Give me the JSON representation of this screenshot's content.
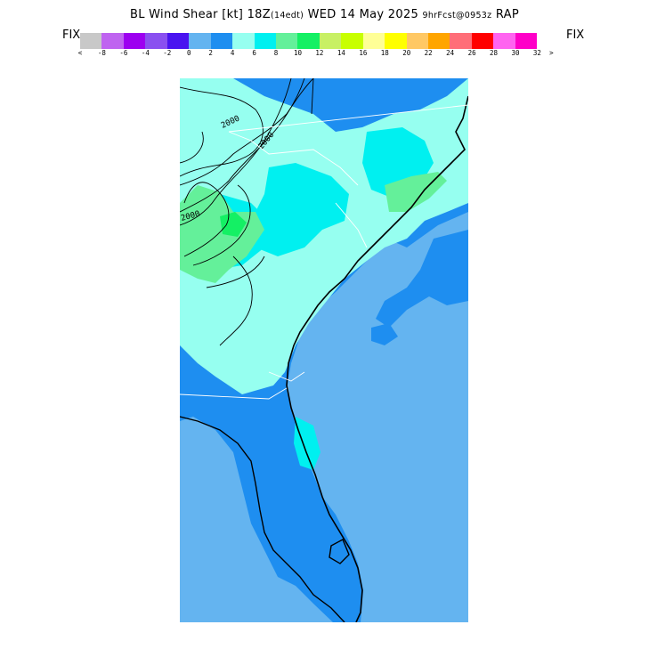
{
  "header": {
    "title_main": "BL Wind Shear [kt] 18Z",
    "title_local": "(14edt)",
    "title_date": "WED 14 May 2025",
    "title_forecast": "9hrFcst@0953z",
    "title_model": "RAP"
  },
  "colorbar": {
    "left_label": "FIX",
    "right_label": "FIX",
    "colors": [
      "#c8c8c8",
      "#bf64f0",
      "#9d00f0",
      "#8a50f0",
      "#4a14f0",
      "#64b4f0",
      "#1e8ef0",
      "#96fff0",
      "#00f0f0",
      "#64f09a",
      "#14f064",
      "#c8f064",
      "#c8ff00",
      "#ffff96",
      "#ffff00",
      "#ffc864",
      "#ffa500",
      "#ff6e78",
      "#ff0000",
      "#ff64f0",
      "#ff00c8"
    ],
    "tick_labels": [
      "<",
      "-8",
      "-6",
      "-4",
      "-2",
      "0",
      "2",
      "4",
      "6",
      "8",
      "10",
      "12",
      "14",
      "16",
      "18",
      "20",
      "22",
      "24",
      "26",
      "28",
      "30",
      "32",
      ">"
    ]
  },
  "map": {
    "region": "Southeast United States",
    "contour_labels": [
      "2000",
      "2000",
      "2000"
    ],
    "colors": {
      "ocean": "#64b4f0",
      "low": "#1e8ef0",
      "mid": "#96fff0",
      "high": "#00f0f0",
      "higher": "#64f09a",
      "peak": "#14f064"
    }
  }
}
